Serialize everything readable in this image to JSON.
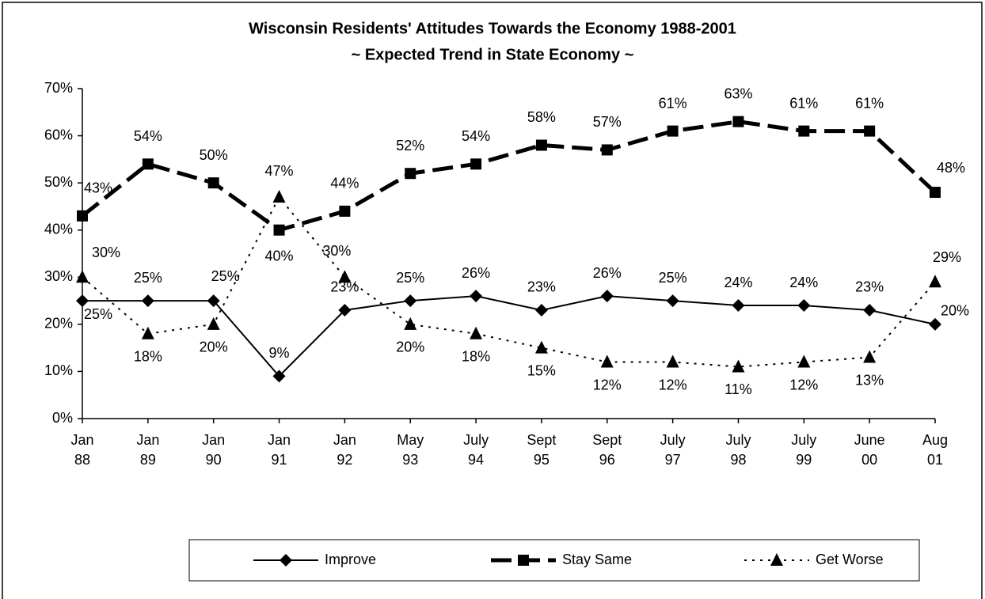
{
  "chart_data": {
    "type": "line",
    "title": "Wisconsin Residents' Attitudes Towards the Economy 1988-2001",
    "subtitle": "~ Expected Trend in State Economy ~",
    "categories": [
      "Jan 88",
      "Jan 89",
      "Jan 90",
      "Jan 91",
      "Jan 92",
      "May 93",
      "July 94",
      "Sept 95",
      "Sept 96",
      "July 97",
      "July 98",
      "July 99",
      "June 00",
      "Aug 01"
    ],
    "series": [
      {
        "name": "Improve",
        "color": "#000000",
        "marker": "diamond",
        "dash": "solid",
        "values": [
          25,
          25,
          25,
          9,
          23,
          25,
          26,
          23,
          26,
          25,
          24,
          24,
          23,
          20
        ],
        "value_labels": [
          "25%",
          "25%",
          "25%",
          "9%",
          "23%",
          "25%",
          "26%",
          "23%",
          "26%",
          "25%",
          "24%",
          "24%",
          "23%",
          "20%"
        ]
      },
      {
        "name": "Stay Same",
        "color": "#000000",
        "marker": "square",
        "dash": "dash",
        "values": [
          43,
          54,
          50,
          40,
          44,
          52,
          54,
          58,
          57,
          61,
          63,
          61,
          61,
          48
        ],
        "value_labels": [
          "43%",
          "54%",
          "50%",
          "40%",
          "44%",
          "52%",
          "54%",
          "58%",
          "57%",
          "61%",
          "63%",
          "61%",
          "61%",
          "48%"
        ]
      },
      {
        "name": "Get Worse",
        "color": "#000000",
        "marker": "triangle",
        "dash": "dot",
        "values": [
          30,
          18,
          20,
          47,
          30,
          20,
          18,
          15,
          12,
          12,
          11,
          12,
          13,
          29
        ],
        "value_labels": [
          "30%",
          "18%",
          "20%",
          "47%",
          "30%",
          "20%",
          "18%",
          "15%",
          "12%",
          "12%",
          "11%",
          "12%",
          "13%",
          "29%"
        ]
      }
    ],
    "ylim": [
      0,
      70
    ],
    "yticks": [
      {
        "value": 0,
        "label": "0%"
      },
      {
        "value": 10,
        "label": "10%"
      },
      {
        "value": 20,
        "label": "20%"
      },
      {
        "value": 30,
        "label": "30%"
      },
      {
        "value": 40,
        "label": "40%"
      },
      {
        "value": 50,
        "label": "50%"
      },
      {
        "value": 60,
        "label": "60%"
      },
      {
        "value": 70,
        "label": "70%"
      }
    ],
    "grid": false,
    "legend": "bottom"
  }
}
